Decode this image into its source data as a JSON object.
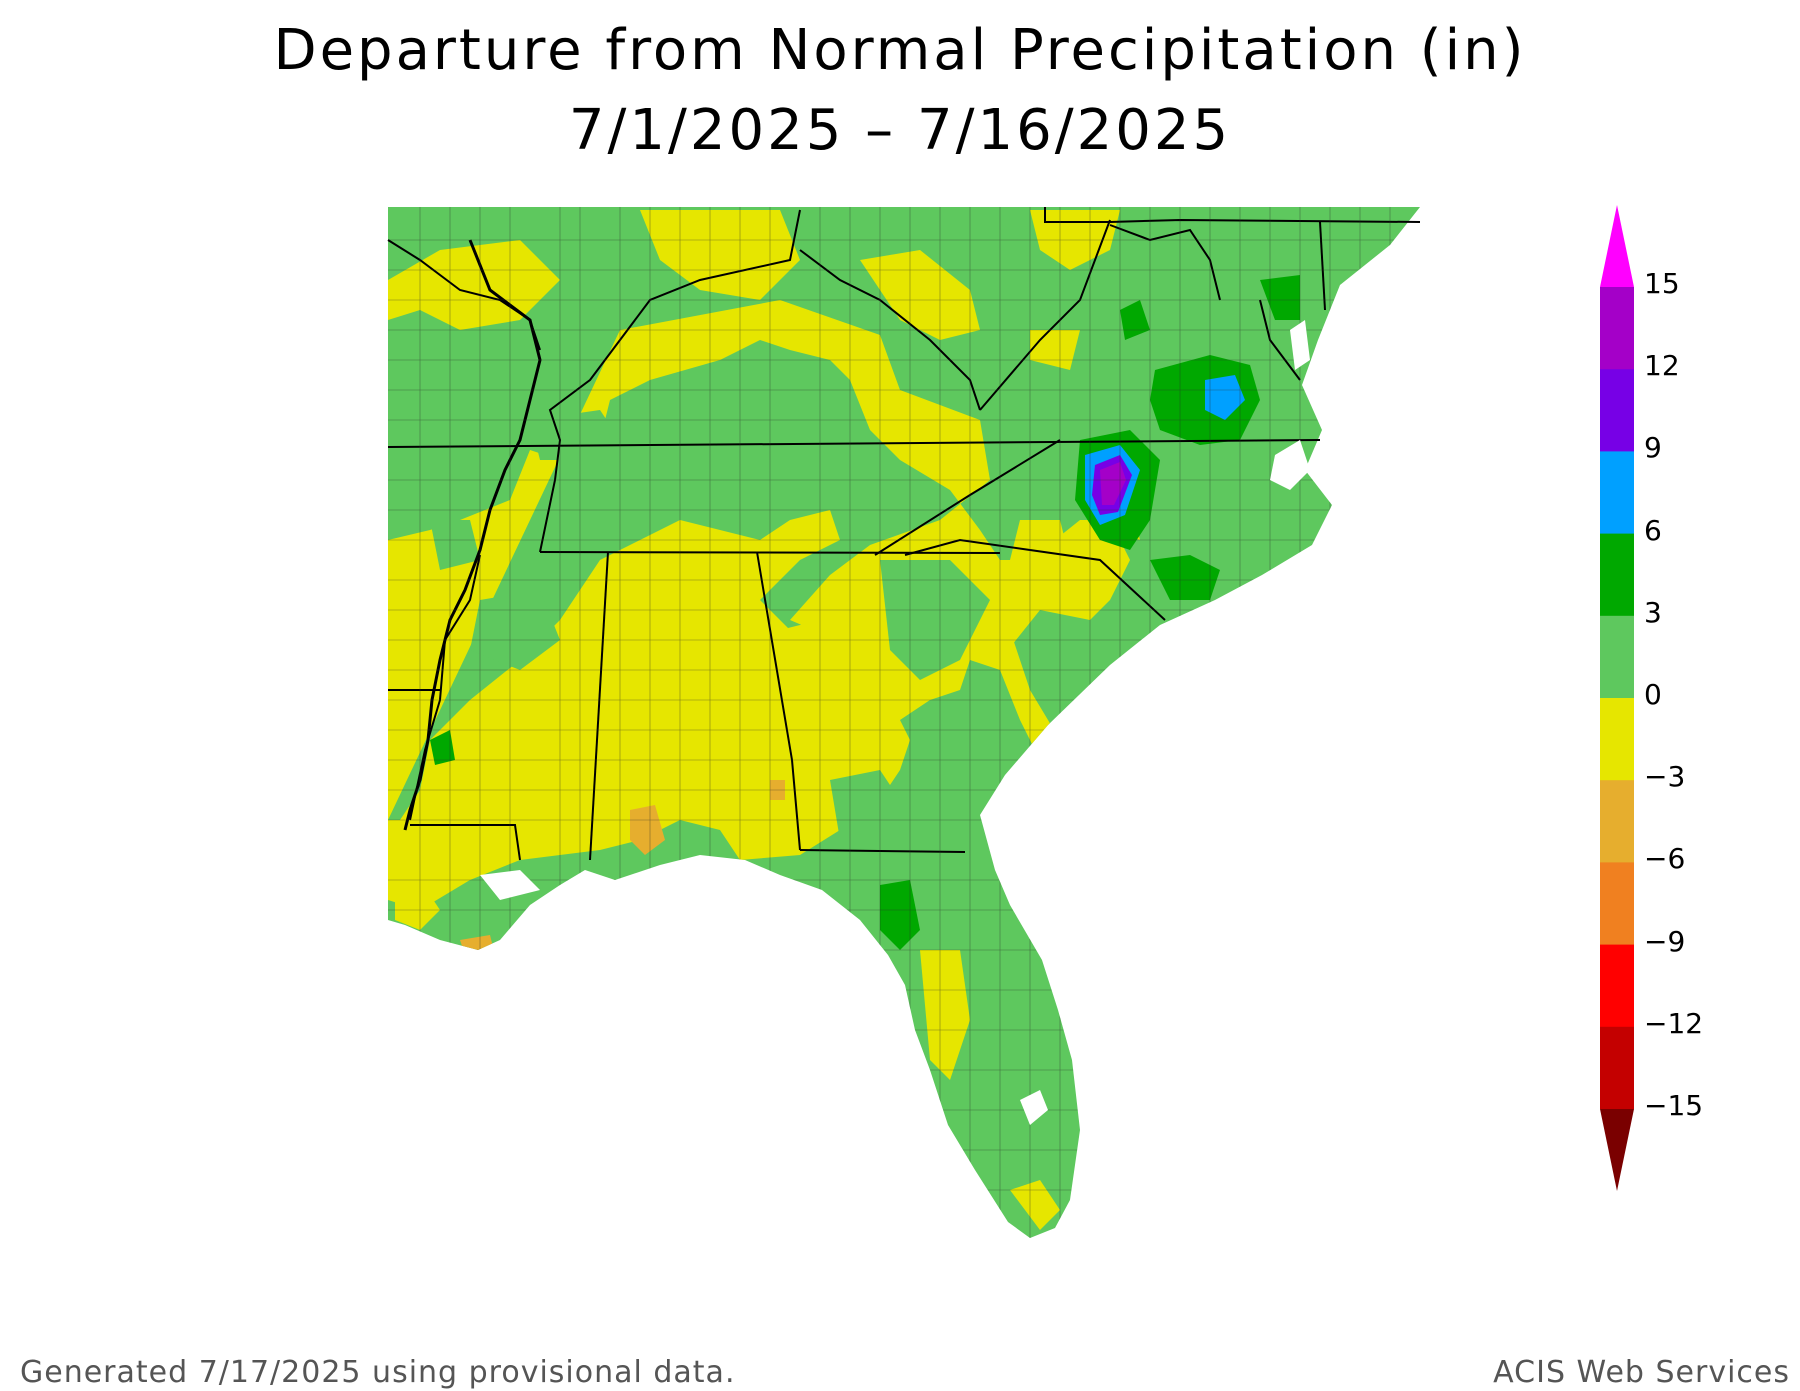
{
  "title": "Departure from Normal Precipitation (in)",
  "subtitle": "7/1/2025 – 7/16/2025",
  "footer_left": "Generated 7/17/2025 using provisional data.",
  "footer_right": "ACIS Web Services",
  "colorbar": {
    "labels": [
      "15",
      "12",
      "9",
      "6",
      "3",
      "0",
      "−3",
      "−6",
      "−9",
      "−12",
      "−15"
    ],
    "bins": [
      {
        "range": "12 to 15",
        "color": "#a400c8"
      },
      {
        "range": "9 to 12",
        "color": "#7700e6"
      },
      {
        "range": "6 to 9",
        "color": "#00a0ff"
      },
      {
        "range": "3 to 6",
        "color": "#00a800"
      },
      {
        "range": "0 to 3",
        "color": "#5ec85e"
      },
      {
        "range": "-3 to 0",
        "color": "#e6e600"
      },
      {
        "range": "-6 to -3",
        "color": "#e6ae2e"
      },
      {
        "range": "-9 to -6",
        "color": "#f08020"
      },
      {
        "range": "-12 to -9",
        "color": "#ff0000"
      },
      {
        "range": "-15 to -12",
        "color": "#c40000"
      }
    ],
    "over_color": "#ff00ff",
    "under_color": "#7a0000"
  }
}
